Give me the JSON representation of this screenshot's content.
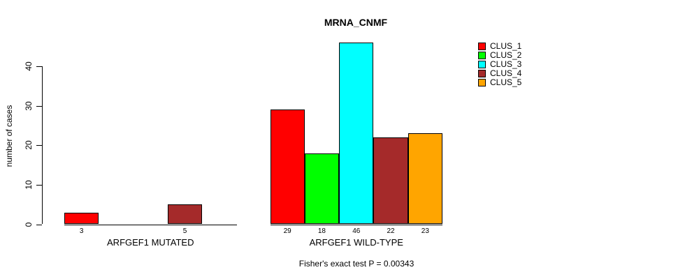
{
  "title": "MRNA_CNMF",
  "ylabel": "number of cases",
  "caption": "Fisher's exact test P = 0.00343",
  "legend": {
    "items": [
      {
        "label": "CLUS_1",
        "color": "#FF0000"
      },
      {
        "label": "CLUS_2",
        "color": "#00FF00"
      },
      {
        "label": "CLUS_3",
        "color": "#00FFFF"
      },
      {
        "label": "CLUS_4",
        "color": "#A52A2A"
      },
      {
        "label": "CLUS_5",
        "color": "#FFA500"
      }
    ]
  },
  "chart_data": {
    "type": "bar",
    "series_names": [
      "CLUS_1",
      "CLUS_2",
      "CLUS_3",
      "CLUS_4",
      "CLUS_5"
    ],
    "series_colors": [
      "#FF0000",
      "#00FF00",
      "#00FFFF",
      "#A52A2A",
      "#FFA500"
    ],
    "groups": [
      {
        "label": "ARFGEF1 MUTATED",
        "values": [
          3,
          0,
          0,
          5,
          0
        ],
        "bar_labels": [
          "3",
          "",
          "",
          "5",
          ""
        ]
      },
      {
        "label": "ARFGEF1 WILD-TYPE",
        "values": [
          29,
          18,
          46,
          22,
          23
        ],
        "bar_labels": [
          "29",
          "18",
          "46",
          "22",
          "23"
        ]
      }
    ],
    "title": "MRNA_CNMF",
    "xlabel": "",
    "ylabel": "number of cases",
    "yticks": [
      0,
      10,
      20,
      30,
      40
    ],
    "ylim": [
      0,
      46
    ],
    "grid": false,
    "legend_position": "right",
    "annotation": "Fisher's exact test P = 0.00343"
  }
}
